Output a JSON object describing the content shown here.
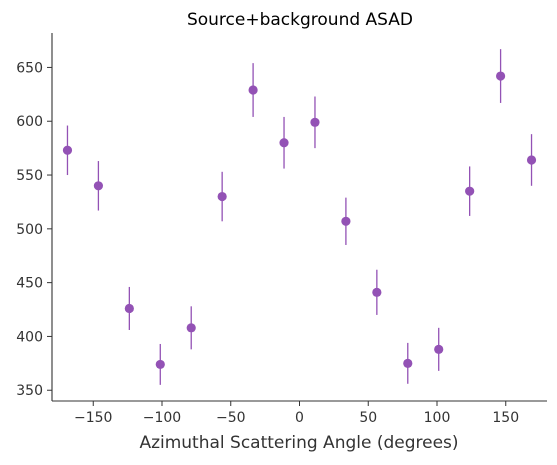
{
  "chart_data": {
    "type": "scatter",
    "title": "Source+background ASAD",
    "xlabel": "Azimuthal Scattering Angle (degrees)",
    "ylabel": "",
    "xlim": [
      -180,
      180
    ],
    "ylim": [
      340,
      682
    ],
    "xticks": [
      -150,
      -100,
      -50,
      0,
      50,
      100,
      150
    ],
    "xtick_labels": [
      "−150",
      "−100",
      "−50",
      "0",
      "50",
      "100",
      "150"
    ],
    "yticks": [
      350,
      400,
      450,
      500,
      550,
      600,
      650
    ],
    "ytick_labels": [
      "350",
      "400",
      "450",
      "500",
      "550",
      "600",
      "650"
    ],
    "grid": false,
    "series": [
      {
        "color": "#9352b5",
        "points": [
          {
            "x": -168.75,
            "y": 573,
            "err": 23
          },
          {
            "x": -146.25,
            "y": 540,
            "err": 23
          },
          {
            "x": -123.75,
            "y": 426,
            "err": 20
          },
          {
            "x": -101.25,
            "y": 374,
            "err": 19
          },
          {
            "x": -78.75,
            "y": 408,
            "err": 20
          },
          {
            "x": -56.25,
            "y": 530,
            "err": 23
          },
          {
            "x": -33.75,
            "y": 629,
            "err": 25
          },
          {
            "x": -11.25,
            "y": 580,
            "err": 24
          },
          {
            "x": 11.25,
            "y": 599,
            "err": 24
          },
          {
            "x": 33.75,
            "y": 507,
            "err": 22
          },
          {
            "x": 56.25,
            "y": 441,
            "err": 21
          },
          {
            "x": 78.75,
            "y": 375,
            "err": 19
          },
          {
            "x": 101.25,
            "y": 388,
            "err": 20
          },
          {
            "x": 123.75,
            "y": 535,
            "err": 23
          },
          {
            "x": 146.25,
            "y": 642,
            "err": 25
          },
          {
            "x": 168.75,
            "y": 564,
            "err": 24
          }
        ]
      }
    ]
  }
}
